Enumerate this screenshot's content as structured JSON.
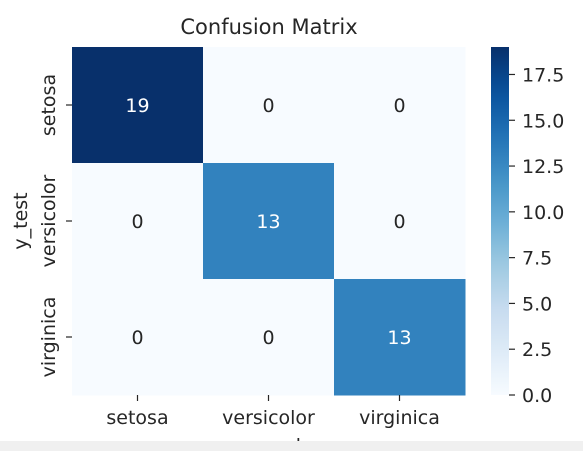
{
  "chart_data": {
    "type": "heatmap",
    "title": "Confusion Matrix",
    "xlabel": "y_pred",
    "ylabel": "y_test",
    "x_categories": [
      "setosa",
      "versicolor",
      "virginica"
    ],
    "y_categories": [
      "setosa",
      "versicolor",
      "virginica"
    ],
    "values": [
      [
        19,
        0,
        0
      ],
      [
        0,
        13,
        0
      ],
      [
        0,
        0,
        13
      ]
    ],
    "colormap": "Blues",
    "colorbar": {
      "range": [
        0,
        19
      ],
      "ticks": [
        0.0,
        2.5,
        5.0,
        7.5,
        10.0,
        12.5,
        15.0,
        17.5
      ],
      "tick_labels": [
        "0.0",
        "2.5",
        "5.0",
        "7.5",
        "10.0",
        "12.5",
        "15.0",
        "17.5"
      ]
    },
    "colors": {
      "low": "#f7fbff",
      "high": "#08306b",
      "text_dark": "#262626",
      "text_light": "#ffffff"
    }
  }
}
